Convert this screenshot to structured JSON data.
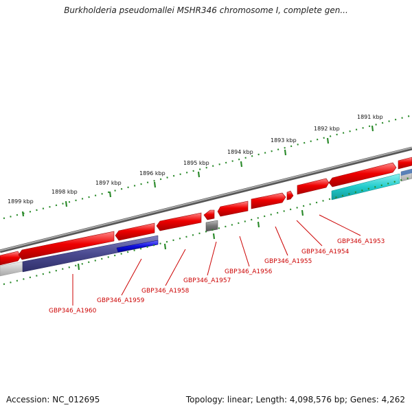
{
  "title": "Burkholderia pseudomallei MSHR346 chromosome I, complete gen...",
  "accession_label": "Accession: NC_012695",
  "summary_label": "Topology: linear; Length: 4,098,576 bp; Genes: 4,262",
  "scale_labels": [
    "1899 kbp",
    "1898 kbp",
    "1897 kbp",
    "1896 kbp",
    "1895 kbp",
    "1894 kbp",
    "1893 kbp",
    "1892 kbp",
    "1891 kbp"
  ],
  "gene_labels": [
    "GBP346_A1960",
    "GBP346_A1959",
    "GBP346_A1958",
    "GBP346_A1957",
    "GBP346_A1956",
    "GBP346_A1955",
    "GBP346_A1954",
    "GBP346_A1953"
  ],
  "colors": {
    "gene": "#ee0000",
    "backbone": "#888888",
    "scale_tick": "#2a8a2a",
    "label": "#cc0000",
    "navy_track": "#4a4a90",
    "blue_track": "#1010dd",
    "cyan_track": "#22cccc",
    "gray_feature": "#777777"
  }
}
